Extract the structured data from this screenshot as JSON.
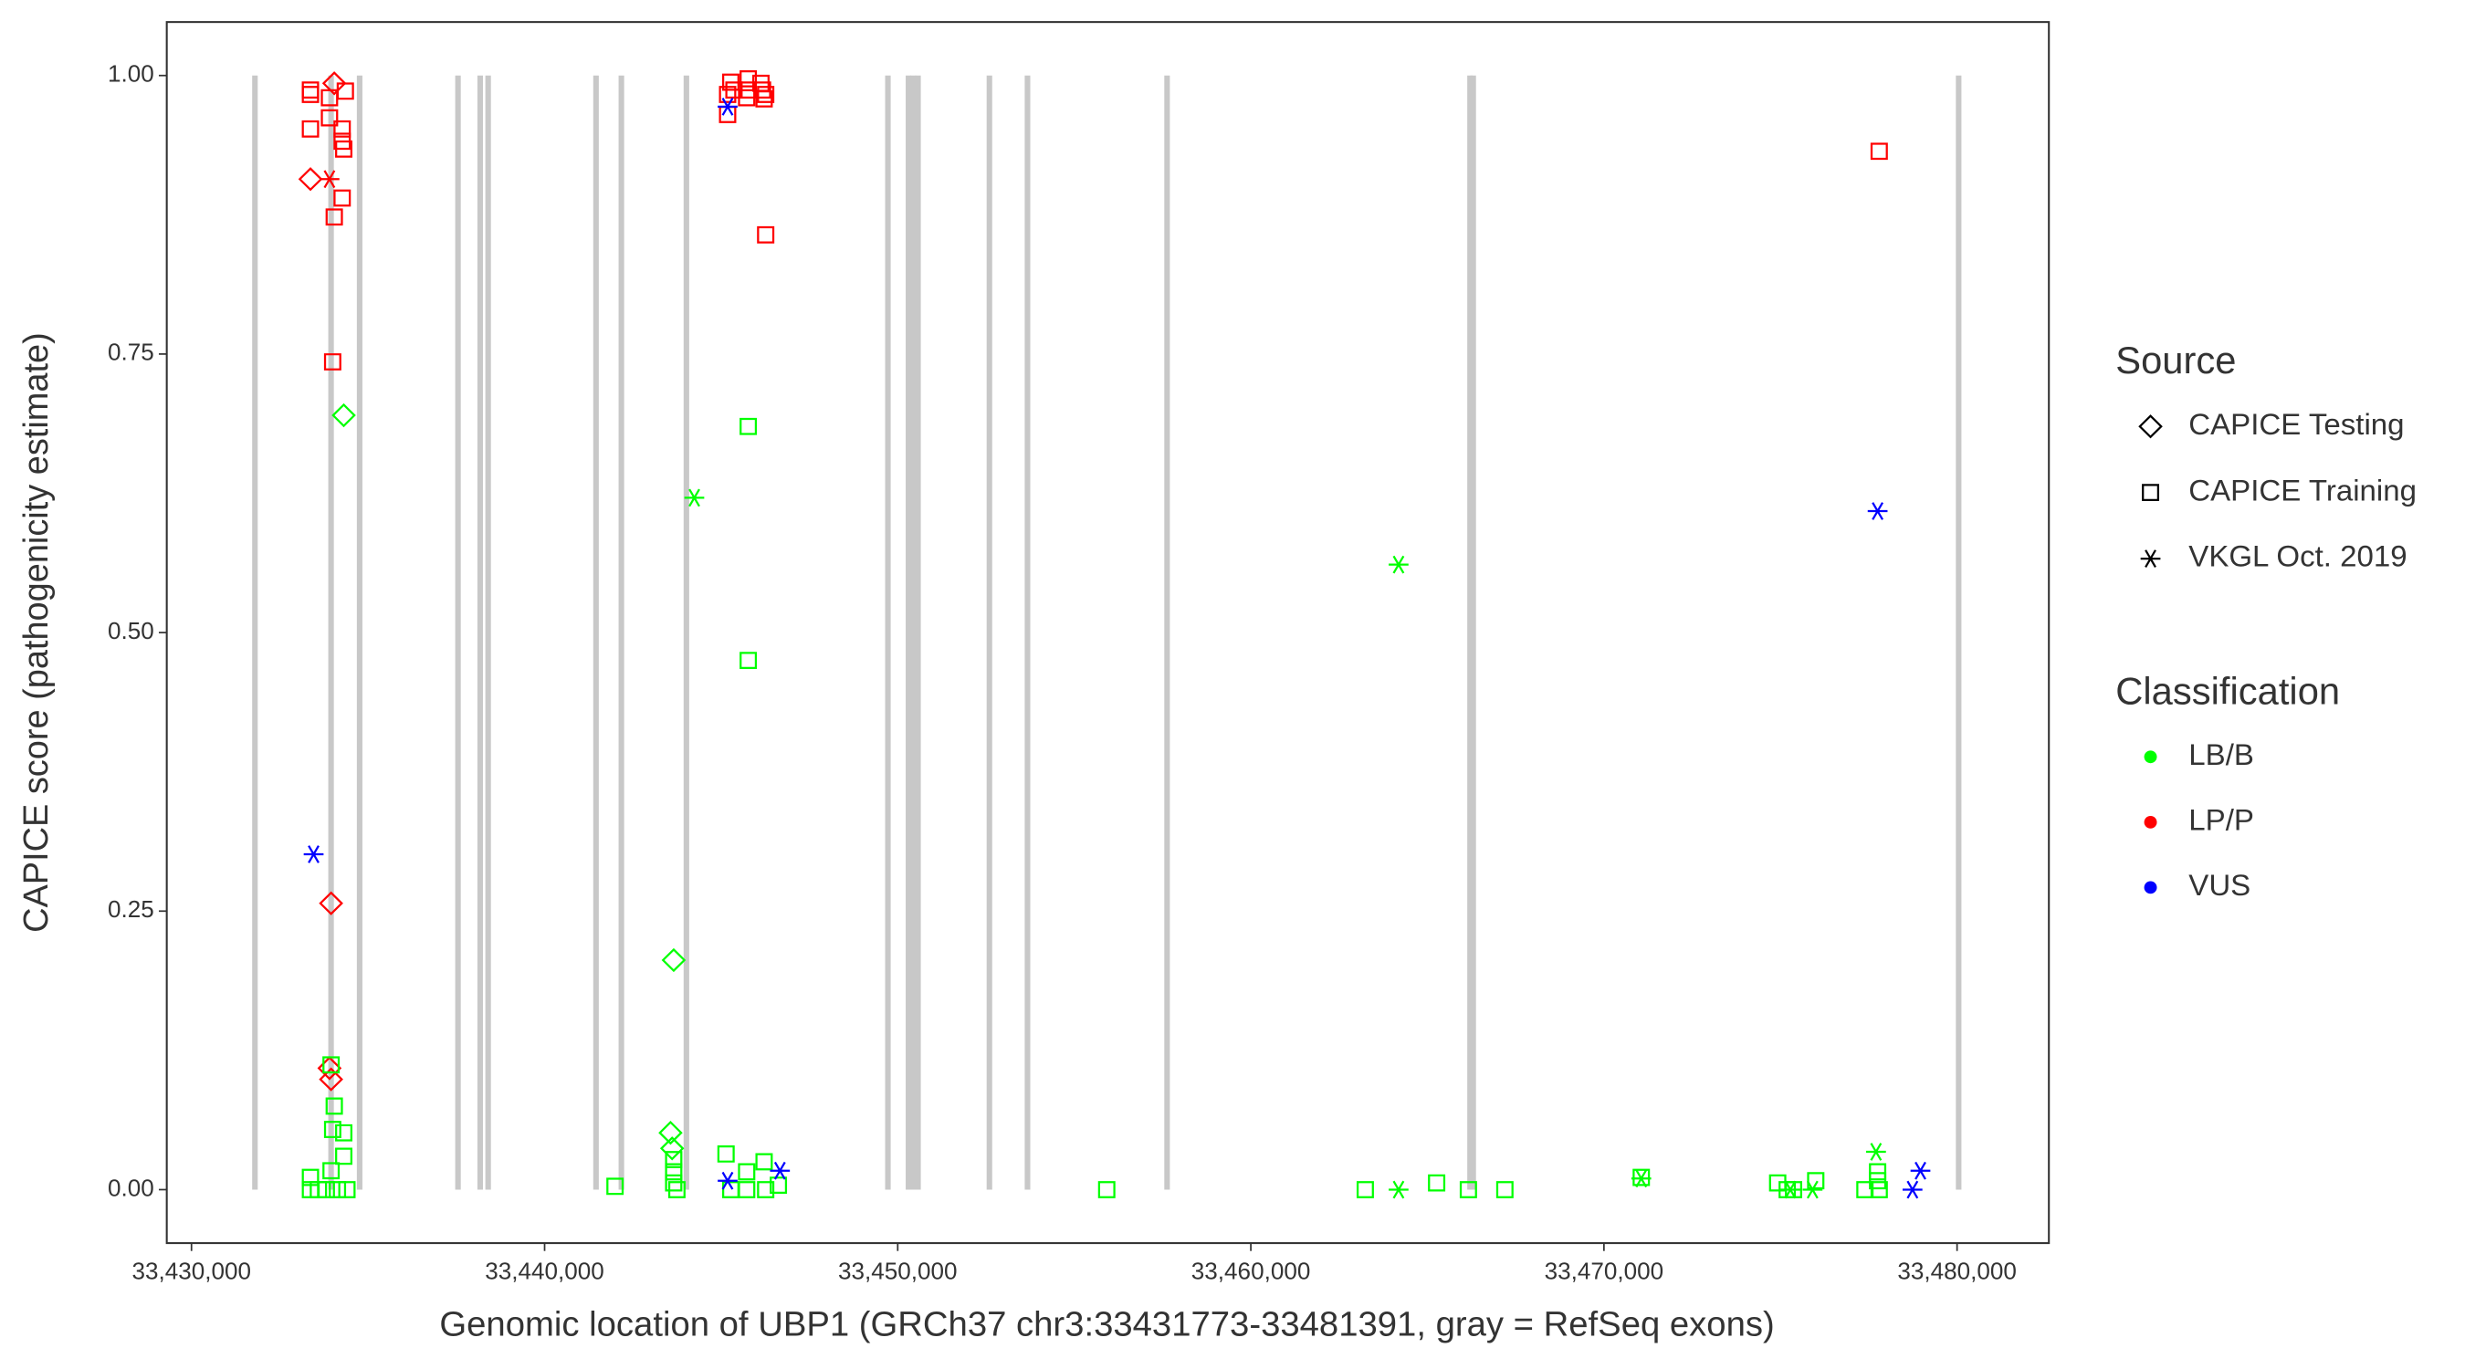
{
  "chart_data": {
    "type": "scatter",
    "x_label": "Genomic location of UBP1 (GRCh37 chr3:33431773-33481391, gray = RefSeq exons)",
    "y_label": "CAPICE score (pathogenicity estimate)",
    "xlim": [
      33429300,
      33482600
    ],
    "ylim": [
      -0.048,
      1.048
    ],
    "xticks": [
      {
        "value": 33430000,
        "label": "33,430,000"
      },
      {
        "value": 33440000,
        "label": "33,440,000"
      },
      {
        "value": 33450000,
        "label": "33,450,000"
      },
      {
        "value": 33460000,
        "label": "33,460,000"
      },
      {
        "value": 33470000,
        "label": "33,470,000"
      },
      {
        "value": 33480000,
        "label": "33,480,000"
      }
    ],
    "yticks": [
      {
        "value": 0,
        "label": "0.00"
      },
      {
        "value": 0.25,
        "label": "0.25"
      },
      {
        "value": 0.5,
        "label": "0.50"
      },
      {
        "value": 0.75,
        "label": "0.75"
      },
      {
        "value": 1,
        "label": "1.00"
      }
    ],
    "exon_color": "#c8c8c8",
    "exons": [
      33431797,
      33433953,
      33434762,
      33437547,
      33438176,
      33438401,
      33441456,
      33442174,
      33444016,
      33449722,
      33450305,
      33450440,
      33450575,
      33452597,
      33453675,
      33457628,
      33466208,
      33466298,
      33480045
    ],
    "source_title": "Source",
    "sources": [
      {
        "name": "CAPICE Testing",
        "shape": "diamond"
      },
      {
        "name": "CAPICE Training",
        "shape": "square"
      },
      {
        "name": "VKGL Oct. 2019",
        "shape": "star"
      }
    ],
    "classification_title": "Classification",
    "classifications": [
      {
        "name": "LB/B",
        "color": "#00ff00"
      },
      {
        "name": "LP/P",
        "color": "#ff0000"
      },
      {
        "name": "VUS",
        "color": "#0000ff"
      }
    ],
    "series": [
      {
        "source": "CAPICE Training",
        "classification": "LP/P",
        "x": [
          33433369,
          33433369,
          33433369,
          33433908,
          33433908,
          33434043,
          33433998,
          33434267,
          33434267,
          33434312,
          33434357,
          33434267,
          33445183,
          33445273,
          33445183,
          33445363,
          33445767,
          33445767,
          33445722,
          33446126,
          33446171,
          33446216,
          33446261,
          33446261,
          33477795
        ],
        "values": [
          0.987,
          0.983,
          0.952,
          0.98,
          0.962,
          0.873,
          0.743,
          0.952,
          0.941,
          0.934,
          0.986,
          0.89,
          0.983,
          0.994,
          0.965,
          0.987,
          0.997,
          0.987,
          0.98,
          0.993,
          0.987,
          0.979,
          0.983,
          0.857,
          0.932
        ]
      },
      {
        "source": "CAPICE Testing",
        "classification": "LP/P",
        "x": [
          33433369,
          33434043,
          33433953,
          33433953,
          33433908
        ],
        "values": [
          0.907,
          0.993,
          0.257,
          0.099,
          0.109
        ]
      },
      {
        "source": "VKGL Oct. 2019",
        "classification": "LP/P",
        "x": [
          33433908
        ],
        "values": [
          0.907
        ]
      },
      {
        "source": "CAPICE Training",
        "classification": "LB/B",
        "x": [
          33433369,
          33433369,
          33433594,
          33433818,
          33433953,
          33433998,
          33434043,
          33433953,
          33434312,
          33434312,
          33434133,
          33434402,
          33441994,
          33443656,
          33443656,
          33443656,
          33443746,
          33445138,
          33445273,
          33445722,
          33445722,
          33445767,
          33445767,
          33446216,
          33446261,
          33446620,
          33455919,
          33463241,
          33465262,
          33466161,
          33467194,
          33471057,
          33474920,
          33475190,
          33475369,
          33475998,
          33477391,
          33477750,
          33477750,
          33477795
        ],
        "values": [
          0.011,
          0,
          0,
          0,
          0.017,
          0.054,
          0.075,
          0.112,
          0.051,
          0.03,
          0,
          0,
          0.003,
          0.027,
          0.016,
          0.006,
          0,
          0.032,
          0,
          0.016,
          0,
          0.685,
          0.475,
          0.025,
          0,
          0.004,
          0,
          0,
          0.006,
          0,
          0,
          0.011,
          0.006,
          0,
          0,
          0.008,
          0,
          0.016,
          0.008,
          0
        ]
      },
      {
        "source": "CAPICE Testing",
        "classification": "LB/B",
        "x": [
          33434312,
          33443656,
          33443566,
          33443611
        ],
        "values": [
          0.695,
          0.206,
          0.051,
          0.037
        ]
      },
      {
        "source": "VKGL Oct. 2019",
        "classification": "LB/B",
        "x": [
          33444240,
          33464184,
          33464184,
          33471057,
          33475908,
          33477705,
          33475280
        ],
        "values": [
          0.621,
          0.561,
          0,
          0.01,
          0,
          0.034,
          0
        ]
      },
      {
        "source": "VKGL Oct. 2019",
        "classification": "VUS",
        "x": [
          33433459,
          33445183,
          33445183,
          33446665,
          33477750,
          33478738,
          33478963
        ],
        "values": [
          0.301,
          0.972,
          0.008,
          0.017,
          0.609,
          0,
          0.017
        ]
      }
    ]
  }
}
